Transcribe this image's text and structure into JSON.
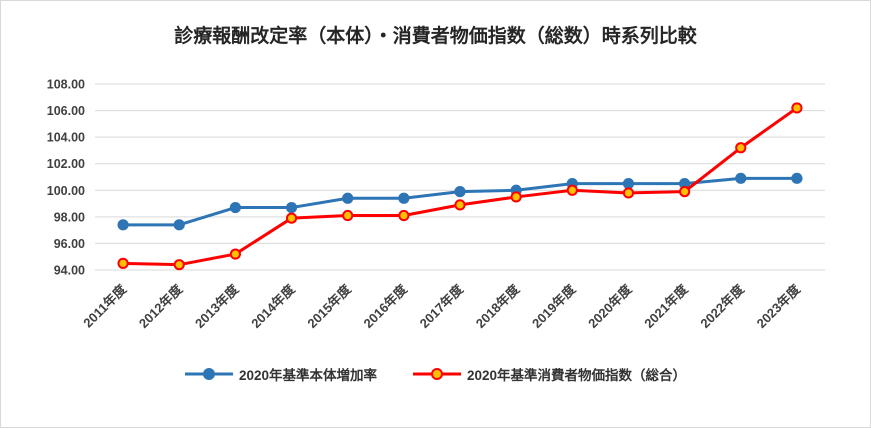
{
  "chart_data": {
    "type": "line",
    "title": "診療報酬改定率（本体）・消費者物価指数（総数）時系列比較",
    "categories": [
      "2011年度",
      "2012年度",
      "2013年度",
      "2014年度",
      "2015年度",
      "2016年度",
      "2017年度",
      "2018年度",
      "2019年度",
      "2020年度",
      "2021年度",
      "2022年度",
      "2023年度"
    ],
    "series": [
      {
        "name": "2020年基準本体増加率",
        "color": "#2E75B6",
        "marker_fill": "#2E75B6",
        "marker_stroke": "#2E75B6",
        "values": [
          97.4,
          97.4,
          98.7,
          98.7,
          99.4,
          99.4,
          99.9,
          100.0,
          100.5,
          100.5,
          100.5,
          100.9,
          100.9
        ]
      },
      {
        "name": "2020年基準消費者物価指数（総合）",
        "color": "#FF0000",
        "marker_fill": "#FFC000",
        "marker_stroke": "#FF0000",
        "values": [
          94.5,
          94.4,
          95.2,
          97.9,
          98.1,
          98.1,
          98.9,
          99.5,
          100.0,
          99.8,
          99.9,
          103.2,
          106.2
        ]
      }
    ],
    "ylim": [
      94,
      108
    ],
    "ytick_step": 2,
    "ytick_decimals": 2,
    "grid": true,
    "grid_color": "#D9D9D9",
    "tick_color": "#404040",
    "title_color": "#262626",
    "legend_position": "bottom",
    "xlabel": "",
    "ylabel": ""
  }
}
